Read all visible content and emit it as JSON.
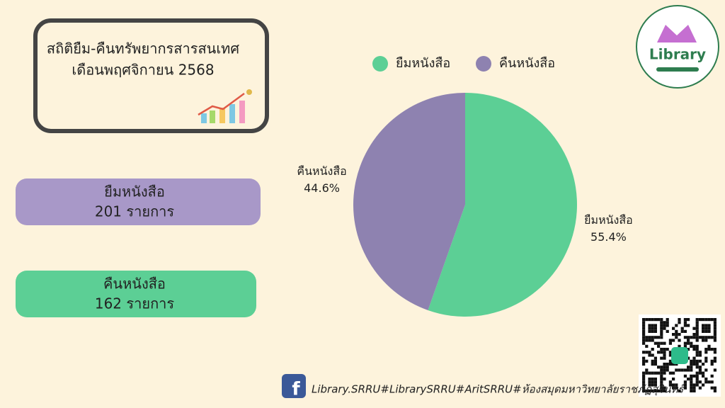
{
  "chart_data": {
    "type": "pie",
    "title": "สถิติยืม-คืนทรัพยากรสารสนเทศ",
    "subtitle": "เดือนพฤศจิกายน 2568",
    "categories": [
      "ยืมหนังสือ",
      "คืนหนังสือ"
    ],
    "values": [
      55.4,
      44.6
    ],
    "value_labels": [
      "55.4%",
      "44.6%"
    ],
    "colors": [
      "#5ccf95",
      "#8e82b0"
    ],
    "legend": "top"
  },
  "cards": [
    {
      "label": "ยืมหนังสือ",
      "count": "201 รายการ"
    },
    {
      "label": "คืนหนังสือ",
      "count": "162 รายการ"
    }
  ],
  "logo": {
    "text": "Library"
  },
  "footer": {
    "text": "Library.SRRU#LibrarySRRU#AritSRRU#ห้องสมุดมหาวิทยาลัยราชภัฏสุรินทร์"
  }
}
